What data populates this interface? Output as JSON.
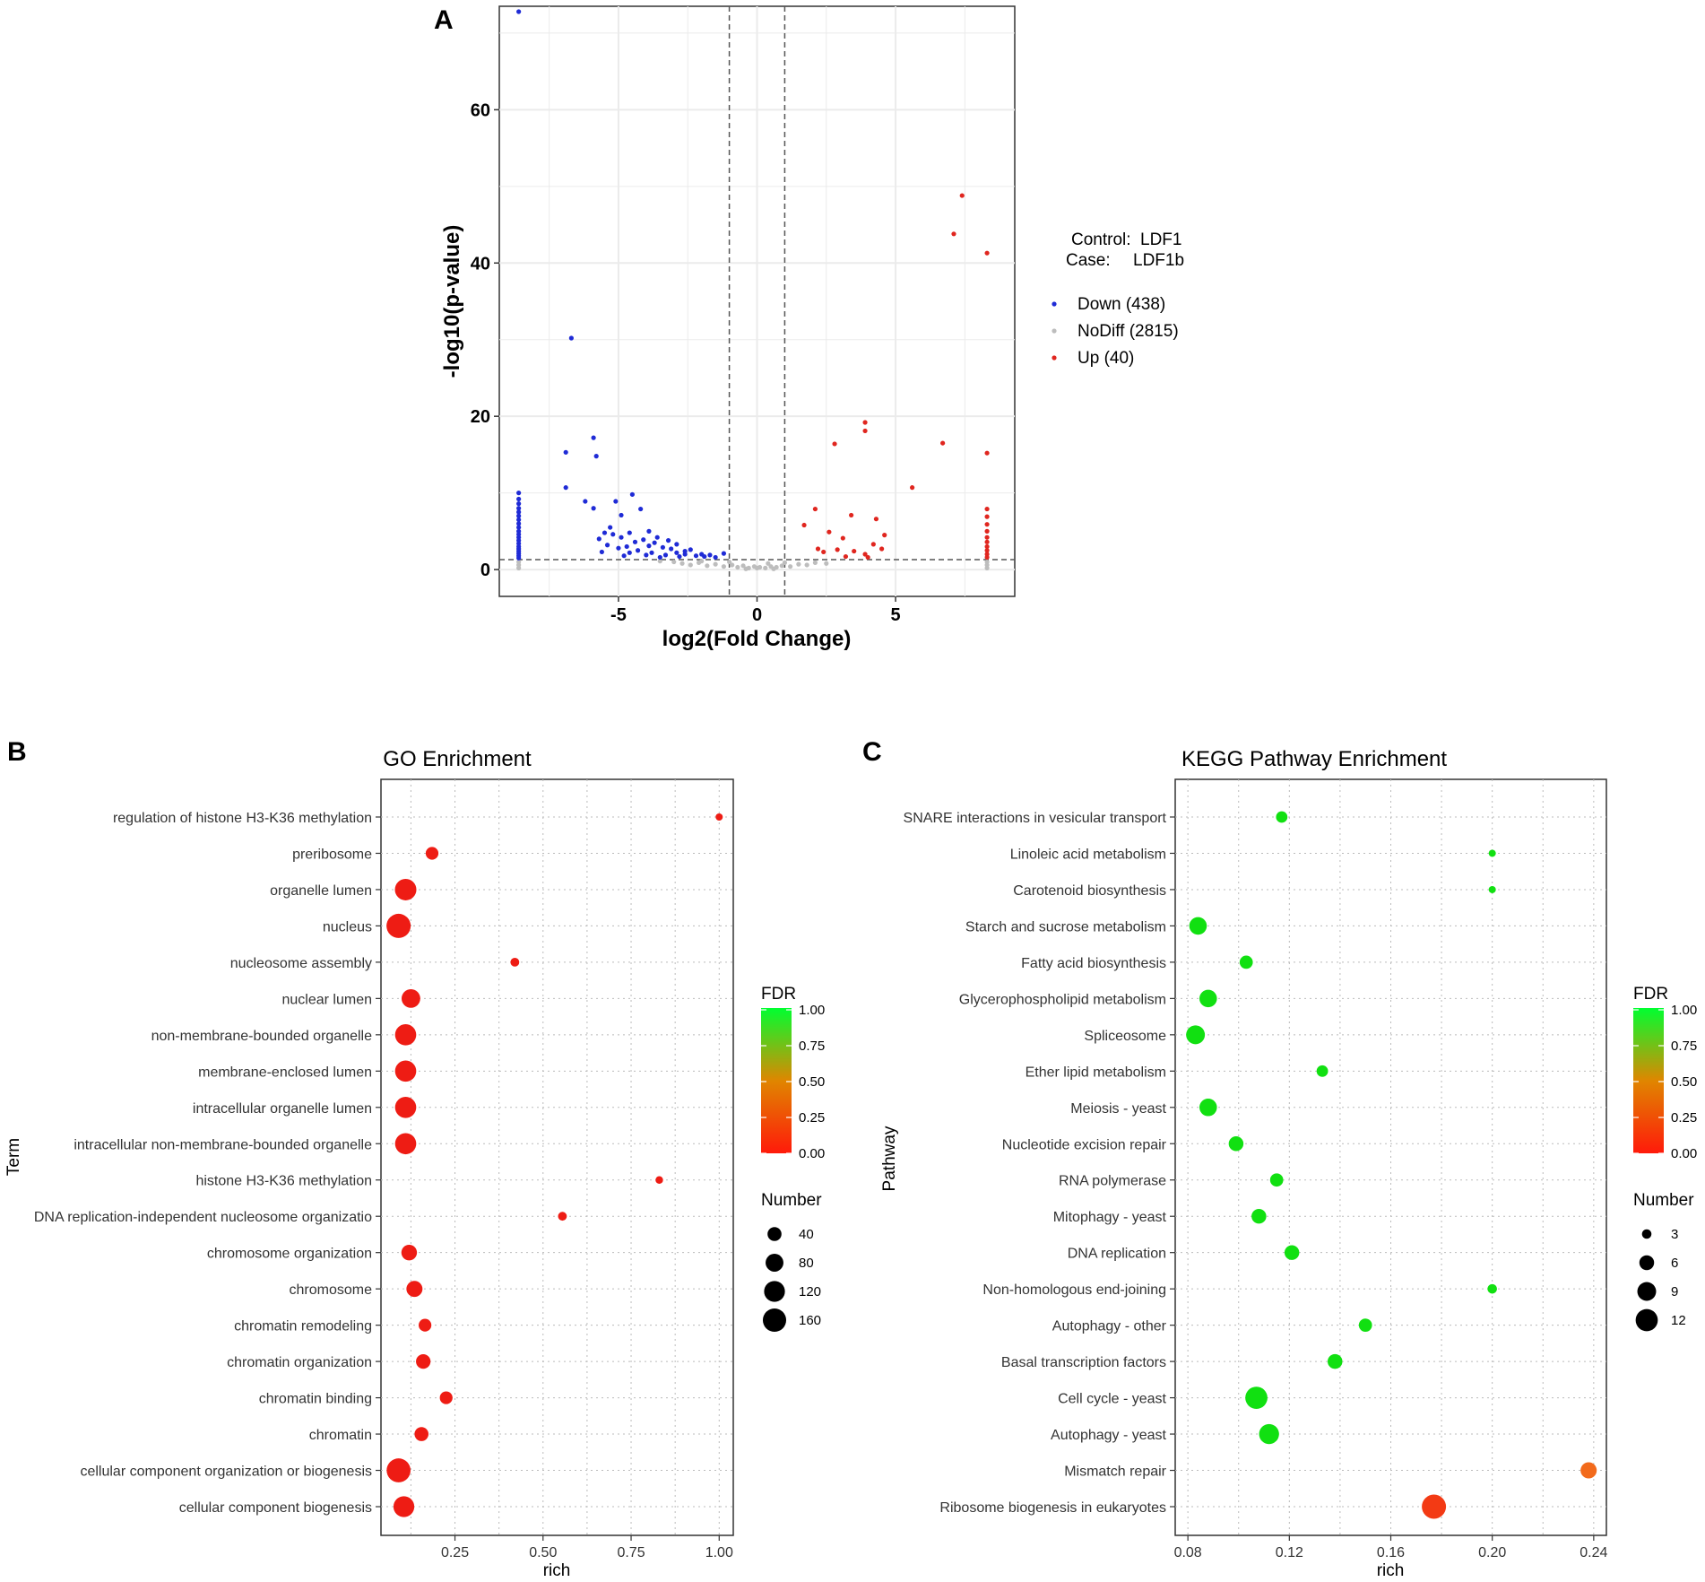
{
  "figure": {
    "colors": {
      "down": "#1f2bd6",
      "up": "#e0261f",
      "nodiff": "#bdbdbd",
      "grid": "#ebebeb",
      "go_dot": "#ee1c14",
      "kegg_green": "#11e011",
      "kegg_orange": "#f26a1b",
      "kegg_red": "#f33a14",
      "fdr_low": "#ff1a0a",
      "fdr_mid": "#e08600",
      "fdr_high": "#00ff30"
    }
  },
  "panel_a": {
    "label": "A",
    "legend": {
      "control_label": "Control:",
      "control_value": "LDF1",
      "case_label": "Case:",
      "case_value": "LDF1b",
      "items": [
        {
          "name": "Down (438)",
          "color_key": "down"
        },
        {
          "name": "NoDiff (2815)",
          "color_key": "nodiff"
        },
        {
          "name": "Up (40)",
          "color_key": "up"
        }
      ]
    }
  },
  "panel_b": {
    "label": "B"
  },
  "panel_c": {
    "label": "C"
  },
  "chart_data": [
    {
      "type": "scatter",
      "title": "",
      "xlabel": "log2(Fold Change)",
      "ylabel": "-log10(p-value)",
      "xlim": [
        -9.3,
        9.3
      ],
      "ylim": [
        -3.5,
        73.5
      ],
      "xticks": [
        -5,
        0,
        5
      ],
      "xtick_labels": [
        "-5",
        "0",
        "5"
      ],
      "yticks": [
        0,
        20,
        40,
        60
      ],
      "ytick_labels": [
        "0",
        "20",
        "40",
        "60"
      ],
      "thresholds": {
        "x": [
          -1,
          1
        ],
        "y": 1.3
      },
      "grid": true,
      "series": [
        {
          "name": "Down (438)",
          "color_key": "down",
          "points": [
            [
              -8.6,
              72.8
            ],
            [
              -6.7,
              30.2
            ],
            [
              -6.9,
              15.3
            ],
            [
              -5.9,
              17.2
            ],
            [
              -5.8,
              14.8
            ],
            [
              -6.9,
              10.7
            ],
            [
              -6.2,
              8.9
            ],
            [
              -5.9,
              8.0
            ],
            [
              -4.5,
              9.8
            ],
            [
              -5.1,
              8.9
            ],
            [
              -4.2,
              7.9
            ],
            [
              -4.9,
              7.1
            ],
            [
              -5.3,
              5.5
            ],
            [
              -5.5,
              4.8
            ],
            [
              -5.2,
              4.6
            ],
            [
              -4.9,
              4.2
            ],
            [
              -4.6,
              4.8
            ],
            [
              -4.4,
              3.6
            ],
            [
              -4.1,
              3.9
            ],
            [
              -3.9,
              3.1
            ],
            [
              -3.7,
              3.5
            ],
            [
              -3.4,
              2.9
            ],
            [
              -3.1,
              2.7
            ],
            [
              -2.9,
              2.2
            ],
            [
              -2.6,
              2.0
            ],
            [
              -2.2,
              1.8
            ],
            [
              -1.9,
              1.7
            ],
            [
              -1.5,
              1.6
            ],
            [
              -1.2,
              2.1
            ],
            [
              -3.9,
              5.0
            ],
            [
              -3.6,
              4.2
            ],
            [
              -3.2,
              3.8
            ],
            [
              -2.9,
              3.3
            ],
            [
              -4.7,
              3.0
            ],
            [
              -4.3,
              2.5
            ],
            [
              -3.8,
              2.2
            ],
            [
              -3.3,
              1.9
            ],
            [
              -2.6,
              2.4
            ],
            [
              -2.4,
              2.6
            ],
            [
              -5.7,
              4.0
            ],
            [
              -5.4,
              3.2
            ],
            [
              -5.0,
              2.8
            ],
            [
              -4.6,
              2.2
            ],
            [
              -4.0,
              1.9
            ],
            [
              -3.5,
              1.6
            ],
            [
              -2.8,
              1.7
            ],
            [
              -2.0,
              2.0
            ],
            [
              -1.7,
              1.9
            ],
            [
              -5.6,
              2.3
            ],
            [
              -4.8,
              1.8
            ],
            [
              -8.6,
              10.0
            ],
            [
              -8.6,
              9.2
            ],
            [
              -8.6,
              8.6
            ],
            [
              -8.6,
              8.0
            ],
            [
              -8.6,
              7.5
            ],
            [
              -8.6,
              7.0
            ],
            [
              -8.6,
              6.5
            ],
            [
              -8.6,
              6.0
            ],
            [
              -8.6,
              5.5
            ],
            [
              -8.6,
              5.0
            ],
            [
              -8.6,
              4.6
            ],
            [
              -8.6,
              4.2
            ],
            [
              -8.6,
              3.8
            ],
            [
              -8.6,
              3.4
            ],
            [
              -8.6,
              3.0
            ],
            [
              -8.6,
              2.7
            ],
            [
              -8.6,
              2.4
            ],
            [
              -8.6,
              2.1
            ],
            [
              -8.6,
              1.8
            ],
            [
              -8.6,
              1.5
            ]
          ]
        },
        {
          "name": "NoDiff (2815)",
          "color_key": "nodiff",
          "points": [
            [
              -8.6,
              0.2
            ],
            [
              -8.6,
              0.6
            ],
            [
              -8.6,
              1.0
            ],
            [
              -3.0,
              1.0
            ],
            [
              -2.7,
              0.8
            ],
            [
              -2.4,
              0.6
            ],
            [
              -2.1,
              0.9
            ],
            [
              -1.8,
              0.5
            ],
            [
              -1.5,
              0.7
            ],
            [
              -1.2,
              0.4
            ],
            [
              -0.9,
              0.6
            ],
            [
              -0.7,
              0.3
            ],
            [
              -0.5,
              0.5
            ],
            [
              -0.3,
              0.2
            ],
            [
              -0.1,
              0.4
            ],
            [
              0.1,
              0.3
            ],
            [
              0.3,
              0.2
            ],
            [
              0.5,
              0.4
            ],
            [
              0.7,
              0.3
            ],
            [
              0.9,
              0.5
            ],
            [
              1.2,
              0.4
            ],
            [
              1.5,
              0.7
            ],
            [
              1.8,
              0.6
            ],
            [
              2.1,
              0.9
            ],
            [
              -3.5,
              1.1
            ],
            [
              -2.0,
              1.1
            ],
            [
              -1.0,
              1.0
            ],
            [
              0.4,
              0.8
            ],
            [
              1.0,
              0.9
            ],
            [
              2.5,
              0.8
            ],
            [
              -0.4,
              0.1
            ],
            [
              0.0,
              0.2
            ],
            [
              0.6,
              0.1
            ],
            [
              8.3,
              0.2
            ],
            [
              8.3,
              0.6
            ],
            [
              8.3,
              1.0
            ]
          ]
        },
        {
          "name": "Up (40)",
          "color_key": "up",
          "points": [
            [
              7.4,
              48.8
            ],
            [
              7.1,
              43.8
            ],
            [
              8.3,
              41.3
            ],
            [
              3.9,
              19.2
            ],
            [
              3.9,
              18.1
            ],
            [
              2.8,
              16.4
            ],
            [
              6.7,
              16.5
            ],
            [
              8.3,
              15.2
            ],
            [
              5.6,
              10.7
            ],
            [
              2.1,
              7.9
            ],
            [
              3.4,
              7.1
            ],
            [
              4.3,
              6.6
            ],
            [
              1.7,
              5.8
            ],
            [
              2.6,
              4.9
            ],
            [
              4.6,
              4.5
            ],
            [
              3.1,
              4.1
            ],
            [
              4.2,
              3.3
            ],
            [
              2.2,
              2.7
            ],
            [
              2.9,
              2.6
            ],
            [
              3.5,
              2.4
            ],
            [
              4.5,
              2.7
            ],
            [
              2.4,
              2.3
            ],
            [
              3.9,
              2.0
            ],
            [
              3.2,
              1.7
            ],
            [
              4.0,
              1.6
            ],
            [
              8.3,
              7.9
            ],
            [
              8.3,
              6.9
            ],
            [
              8.3,
              5.9
            ],
            [
              8.3,
              5.0
            ],
            [
              8.3,
              4.2
            ],
            [
              8.3,
              3.6
            ],
            [
              8.3,
              3.0
            ],
            [
              8.3,
              2.5
            ],
            [
              8.3,
              2.0
            ],
            [
              8.3,
              1.6
            ]
          ]
        }
      ]
    },
    {
      "type": "scatter",
      "title": "GO Enrichment",
      "xlabel": "rich",
      "ylabel": "Term",
      "xlim": [
        0.04,
        1.04
      ],
      "xticks": [
        0.25,
        0.5,
        0.75,
        1.0
      ],
      "xtick_labels": [
        "0.25",
        "0.50",
        "0.75",
        "1.00"
      ],
      "categories": [
        "regulation of histone H3-K36 methylation",
        "preribosome",
        "organelle lumen",
        "nucleus",
        "nucleosome assembly",
        "nuclear lumen",
        "non-membrane-bounded organelle",
        "membrane-enclosed lumen",
        "intracellular organelle lumen",
        "intracellular non-membrane-bounded organelle",
        "histone H3-K36 methylation",
        "DNA replication-independent nucleosome organizatio",
        "chromosome organization",
        "chromosome",
        "chromatin remodeling",
        "chromatin organization",
        "chromatin binding",
        "chromatin",
        "cellular component organization or biogenesis",
        "cellular component biogenesis"
      ],
      "rich": [
        1.0,
        0.185,
        0.11,
        0.09,
        0.42,
        0.125,
        0.11,
        0.11,
        0.11,
        0.11,
        0.83,
        0.555,
        0.12,
        0.135,
        0.165,
        0.16,
        0.225,
        0.155,
        0.09,
        0.105
      ],
      "number": [
        3,
        30,
        130,
        175,
        8,
        90,
        125,
        125,
        125,
        125,
        4,
        8,
        55,
        60,
        30,
        45,
        30,
        40,
        170,
        120
      ],
      "fdr": [
        0.0,
        0.0,
        0.0,
        0.0,
        0.0,
        0.0,
        0.0,
        0.0,
        0.0,
        0.0,
        0.0,
        0.0,
        0.0,
        0.0,
        0.0,
        0.0,
        0.0,
        0.0,
        0.0,
        0.0
      ],
      "legend": {
        "fdr_title": "FDR",
        "fdr_ticks": [
          "1.00",
          "0.75",
          "0.50",
          "0.25",
          "0.00"
        ],
        "size_title": "Number",
        "size_values": [
          40,
          80,
          120,
          160
        ],
        "size_labels": [
          "40",
          "80",
          "120",
          "160"
        ]
      }
    },
    {
      "type": "scatter",
      "title": "KEGG Pathway Enrichment",
      "xlabel": "rich",
      "ylabel": "Pathway",
      "xlim": [
        0.075,
        0.245
      ],
      "xticks": [
        0.08,
        0.12,
        0.16,
        0.2,
        0.24
      ],
      "xtick_labels": [
        "0.08",
        "0.12",
        "0.16",
        "0.20",
        "0.24"
      ],
      "categories": [
        "SNARE interactions in vesicular transport",
        "Linoleic acid metabolism",
        "Carotenoid biosynthesis",
        "Starch and sucrose metabolism",
        "Fatty acid biosynthesis",
        "Glycerophospholipid metabolism",
        "Spliceosome",
        "Ether lipid metabolism",
        "Meiosis - yeast",
        "Nucleotide excision repair",
        "RNA polymerase",
        "Mitophagy - yeast",
        "DNA replication",
        "Non-homologous end-joining",
        "Autophagy - other",
        "Basal transcription factors",
        "Cell cycle - yeast",
        "Autophagy - yeast",
        "Mismatch repair",
        "Ribosome biogenesis in eukaryotes"
      ],
      "rich": [
        0.117,
        0.2,
        0.2,
        0.084,
        0.103,
        0.088,
        0.083,
        0.133,
        0.088,
        0.099,
        0.115,
        0.108,
        0.121,
        0.2,
        0.15,
        0.138,
        0.107,
        0.112,
        0.238,
        0.177
      ],
      "number": [
        4,
        2,
        2,
        8,
        5,
        8,
        9,
        4,
        8,
        6,
        5,
        6,
        6,
        3,
        5,
        6,
        12,
        10,
        7,
        14
      ],
      "fdr": [
        1.0,
        1.0,
        1.0,
        1.0,
        1.0,
        1.0,
        1.0,
        1.0,
        1.0,
        1.0,
        1.0,
        1.0,
        1.0,
        1.0,
        1.0,
        1.0,
        1.0,
        1.0,
        0.4,
        0.2
      ],
      "legend": {
        "fdr_title": "FDR",
        "fdr_ticks": [
          "1.00",
          "0.75",
          "0.50",
          "0.25",
          "0.00"
        ],
        "size_title": "Number",
        "size_values": [
          3,
          6,
          9,
          12
        ],
        "size_labels": [
          "3",
          "6",
          "9",
          "12"
        ]
      }
    }
  ]
}
